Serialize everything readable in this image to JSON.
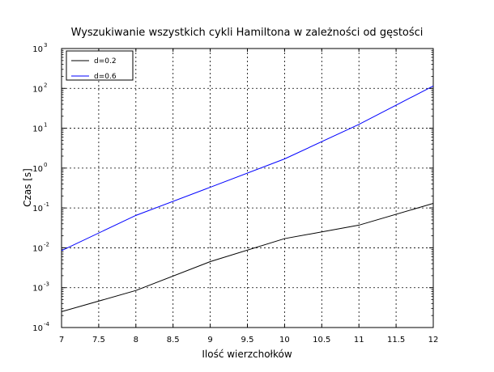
{
  "chart_data": {
    "type": "line",
    "title": "Wyszukiwanie wszystkich cykli Hamiltona w zależności od gęstości",
    "xlabel": "Ilość wierzchołków",
    "ylabel": "Czas [s]",
    "xlim": [
      7,
      12
    ],
    "ylim": [
      0.0001,
      1000
    ],
    "yscale": "log",
    "grid": true,
    "legend_position": "top-left",
    "x_ticks": [
      "7",
      "7.5",
      "8",
      "8.5",
      "9",
      "9.5",
      "10",
      "10.5",
      "11",
      "11.5",
      "12"
    ],
    "y_ticks": [
      {
        "base": "10",
        "exp": "-4"
      },
      {
        "base": "10",
        "exp": "-3"
      },
      {
        "base": "10",
        "exp": "-2"
      },
      {
        "base": "10",
        "exp": "-1"
      },
      {
        "base": "10",
        "exp": "0"
      },
      {
        "base": "10",
        "exp": "1"
      },
      {
        "base": "10",
        "exp": "2"
      },
      {
        "base": "10",
        "exp": "3"
      }
    ],
    "series": [
      {
        "name": "d=0.2",
        "color": "#000000",
        "x": [
          7,
          8,
          9,
          10,
          11,
          12
        ],
        "y": [
          0.00025,
          0.00085,
          0.0045,
          0.017,
          0.037,
          0.13
        ]
      },
      {
        "name": "d=0.6",
        "color": "#0000ff",
        "x": [
          7,
          8,
          9,
          10,
          11,
          12
        ],
        "y": [
          0.0085,
          0.065,
          0.33,
          1.7,
          12.5,
          115
        ]
      }
    ]
  }
}
